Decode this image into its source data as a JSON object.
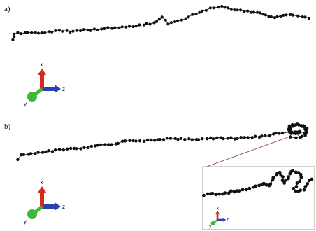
{
  "panels": [
    {
      "label": "a)"
    },
    {
      "label": "b)"
    }
  ],
  "axes_triad": {
    "x": "x",
    "y": "y",
    "z": "z"
  },
  "colors": {
    "bead": "#111111",
    "bond": "#222222",
    "axis_x": "#d42a1e",
    "axis_y": "#3ab83a",
    "axis_z": "#2a3fb0",
    "inset_border": "#8a8a8a",
    "zoom_line": "#7a3a3a"
  }
}
